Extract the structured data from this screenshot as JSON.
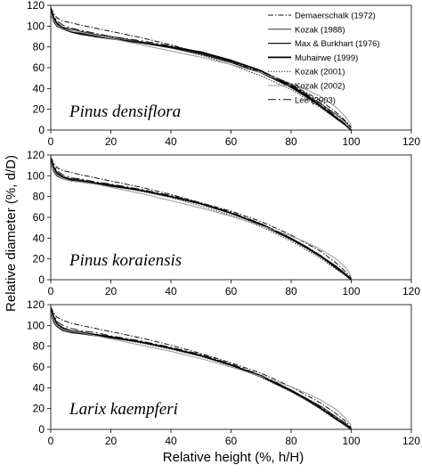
{
  "chart_data": [
    {
      "type": "line",
      "annotation": "Pinus densiflora",
      "xlim": [
        0,
        120
      ],
      "ylim": [
        0,
        120
      ],
      "xticks": [
        "0",
        "20",
        "40",
        "60",
        "80",
        "100",
        "120"
      ],
      "yticks": [
        "0",
        "20",
        "40",
        "60",
        "80",
        "100",
        "120"
      ],
      "grid": false,
      "legend": "top-right",
      "series": [
        {
          "name": "Demaerschalk (1972)",
          "style": "dash-dot",
          "x": [
            0,
            1,
            2,
            4,
            7,
            10,
            15,
            20,
            30,
            40,
            50,
            60,
            70,
            80,
            85,
            90,
            95,
            98,
            100
          ],
          "y": [
            118,
            112,
            108,
            105,
            103,
            101,
            98,
            95,
            89,
            82,
            74,
            66,
            56,
            44,
            36,
            28,
            17,
            9,
            3
          ]
        },
        {
          "name": "Kozak (1988)",
          "style": "solid-thin",
          "x": [
            0,
            1,
            2,
            4,
            7,
            10,
            15,
            20,
            30,
            40,
            50,
            60,
            70,
            80,
            85,
            90,
            95,
            98,
            100
          ],
          "y": [
            114,
            106,
            102,
            99,
            97,
            95,
            92,
            90,
            85,
            80,
            74,
            66,
            57,
            43,
            34,
            25,
            15,
            8,
            2
          ]
        },
        {
          "name": "Max & Burkhart (1976)",
          "style": "solid",
          "x": [
            0,
            1,
            2,
            4,
            7,
            10,
            15,
            20,
            30,
            40,
            50,
            60,
            70,
            80,
            85,
            90,
            95,
            98,
            100
          ],
          "y": [
            112,
            104,
            100,
            97,
            94,
            92,
            90,
            88,
            84,
            79,
            73,
            65,
            55,
            41,
            32,
            22,
            11,
            5,
            0
          ]
        },
        {
          "name": "Muhairwe (1999)",
          "style": "solid-bold",
          "x": [
            0,
            1,
            2,
            4,
            7,
            10,
            15,
            20,
            30,
            40,
            50,
            60,
            70,
            80,
            85,
            90,
            95,
            98,
            100
          ],
          "y": [
            116,
            108,
            103,
            98,
            95,
            93,
            90,
            88,
            84,
            80,
            75,
            67,
            57,
            42,
            33,
            23,
            12,
            5,
            0
          ]
        },
        {
          "name": "Kozak (2001)",
          "style": "dotted",
          "x": [
            0,
            1,
            2,
            4,
            7,
            10,
            15,
            20,
            30,
            40,
            50,
            60,
            70,
            80,
            85,
            90,
            95,
            98,
            100
          ],
          "y": [
            115,
            107,
            102,
            98,
            95,
            93,
            91,
            89,
            84,
            79,
            72,
            63,
            52,
            39,
            30,
            21,
            11,
            5,
            0
          ]
        },
        {
          "name": "Kozak (2002)",
          "style": "solid-gray",
          "x": [
            0,
            1,
            2,
            4,
            7,
            10,
            15,
            20,
            30,
            40,
            50,
            60,
            70,
            80,
            85,
            90,
            95,
            98,
            100
          ],
          "y": [
            112,
            105,
            101,
            97,
            95,
            94,
            91,
            88,
            82,
            76,
            70,
            63,
            55,
            45,
            39,
            32,
            22,
            13,
            5
          ]
        },
        {
          "name": "Lee (2003)",
          "style": "long-dash-dot",
          "x": [
            0,
            1,
            2,
            4,
            7,
            10,
            15,
            20,
            30,
            40,
            50,
            60,
            70,
            80,
            85,
            90,
            95,
            98,
            100
          ],
          "y": [
            117,
            110,
            105,
            101,
            98,
            96,
            93,
            90,
            86,
            81,
            75,
            67,
            57,
            44,
            35,
            25,
            13,
            6,
            0
          ]
        }
      ]
    },
    {
      "type": "line",
      "annotation": "Pinus koraiensis",
      "xlim": [
        0,
        120
      ],
      "ylim": [
        0,
        120
      ],
      "xticks": [
        "0",
        "20",
        "40",
        "60",
        "80",
        "100",
        "120"
      ],
      "yticks": [
        "0",
        "20",
        "40",
        "60",
        "80",
        "100",
        "120"
      ],
      "grid": false,
      "series": [
        {
          "name": "Demaerschalk (1972)",
          "style": "dash-dot",
          "x": [
            0,
            1,
            2,
            4,
            7,
            10,
            15,
            20,
            30,
            40,
            50,
            60,
            70,
            80,
            85,
            90,
            95,
            98,
            100
          ],
          "y": [
            118,
            112,
            108,
            105,
            103,
            101,
            98,
            95,
            89,
            82,
            74,
            66,
            56,
            43,
            35,
            27,
            16,
            8,
            2
          ]
        },
        {
          "name": "Kozak (1988)",
          "style": "solid-thin",
          "x": [
            0,
            1,
            2,
            4,
            7,
            10,
            15,
            20,
            30,
            40,
            50,
            60,
            70,
            80,
            85,
            90,
            95,
            98,
            100
          ],
          "y": [
            114,
            106,
            102,
            99,
            97,
            96,
            93,
            91,
            86,
            80,
            73,
            64,
            54,
            40,
            32,
            23,
            13,
            6,
            1
          ]
        },
        {
          "name": "Max & Burkhart (1976)",
          "style": "solid",
          "x": [
            0,
            1,
            2,
            4,
            7,
            10,
            15,
            20,
            30,
            40,
            50,
            60,
            70,
            80,
            85,
            90,
            95,
            98,
            100
          ],
          "y": [
            112,
            104,
            100,
            97,
            95,
            94,
            92,
            90,
            86,
            80,
            73,
            64,
            53,
            39,
            31,
            22,
            11,
            5,
            0
          ]
        },
        {
          "name": "Muhairwe (1999)",
          "style": "solid-bold",
          "x": [
            0,
            1,
            2,
            4,
            7,
            10,
            15,
            20,
            30,
            40,
            50,
            60,
            70,
            80,
            85,
            90,
            95,
            98,
            100
          ],
          "y": [
            116,
            108,
            103,
            99,
            96,
            95,
            93,
            91,
            86,
            80,
            73,
            64,
            53,
            39,
            31,
            22,
            12,
            5,
            0
          ]
        },
        {
          "name": "Kozak (2001)",
          "style": "dotted",
          "x": [
            0,
            1,
            2,
            4,
            7,
            10,
            15,
            20,
            30,
            40,
            50,
            60,
            70,
            80,
            85,
            90,
            95,
            98,
            100
          ],
          "y": [
            115,
            107,
            102,
            98,
            96,
            95,
            92,
            90,
            85,
            79,
            71,
            62,
            51,
            37,
            29,
            20,
            10,
            4,
            0
          ]
        },
        {
          "name": "Kozak (2002)",
          "style": "solid-gray",
          "x": [
            0,
            1,
            2,
            4,
            7,
            10,
            15,
            20,
            30,
            40,
            50,
            60,
            70,
            80,
            85,
            90,
            95,
            98,
            100
          ],
          "y": [
            112,
            105,
            101,
            97,
            95,
            94,
            92,
            89,
            83,
            76,
            69,
            61,
            52,
            42,
            36,
            29,
            20,
            12,
            4
          ]
        },
        {
          "name": "Lee (2003)",
          "style": "long-dash-dot",
          "x": [
            0,
            1,
            2,
            4,
            7,
            10,
            15,
            20,
            30,
            40,
            50,
            60,
            70,
            80,
            85,
            90,
            95,
            98,
            100
          ],
          "y": [
            117,
            110,
            105,
            101,
            98,
            97,
            94,
            92,
            87,
            81,
            74,
            65,
            54,
            40,
            32,
            23,
            12,
            5,
            0
          ]
        }
      ]
    },
    {
      "type": "line",
      "annotation": "Larix kaempferi",
      "xlim": [
        0,
        120
      ],
      "ylim": [
        0,
        120
      ],
      "xticks": [
        "0",
        "20",
        "40",
        "60",
        "80",
        "100",
        "120"
      ],
      "yticks": [
        "0",
        "20",
        "40",
        "60",
        "80",
        "100",
        "120"
      ],
      "grid": false,
      "series": [
        {
          "name": "Demaerschalk (1972)",
          "style": "dash-dot",
          "x": [
            0,
            1,
            2,
            4,
            7,
            10,
            15,
            20,
            30,
            40,
            50,
            60,
            70,
            80,
            85,
            90,
            95,
            98,
            100
          ],
          "y": [
            118,
            112,
            108,
            105,
            102,
            100,
            97,
            94,
            88,
            81,
            73,
            64,
            54,
            41,
            33,
            25,
            15,
            8,
            2
          ]
        },
        {
          "name": "Kozak (1988)",
          "style": "solid-thin",
          "x": [
            0,
            1,
            2,
            4,
            7,
            10,
            15,
            20,
            30,
            40,
            50,
            60,
            70,
            80,
            85,
            90,
            95,
            98,
            100
          ],
          "y": [
            114,
            106,
            102,
            98,
            95,
            94,
            91,
            89,
            84,
            78,
            71,
            62,
            52,
            38,
            30,
            22,
            12,
            6,
            1
          ]
        },
        {
          "name": "Max & Burkhart (1976)",
          "style": "solid",
          "x": [
            0,
            1,
            2,
            4,
            7,
            10,
            15,
            20,
            30,
            40,
            50,
            60,
            70,
            80,
            85,
            90,
            95,
            98,
            100
          ],
          "y": [
            112,
            103,
            99,
            95,
            93,
            92,
            90,
            88,
            84,
            78,
            71,
            62,
            51,
            37,
            29,
            20,
            10,
            4,
            0
          ]
        },
        {
          "name": "Muhairwe (1999)",
          "style": "solid-bold",
          "x": [
            0,
            1,
            2,
            4,
            7,
            10,
            15,
            20,
            30,
            40,
            50,
            60,
            70,
            80,
            85,
            90,
            95,
            98,
            100
          ],
          "y": [
            116,
            108,
            102,
            97,
            94,
            93,
            91,
            89,
            84,
            78,
            71,
            62,
            51,
            37,
            29,
            20,
            10,
            4,
            0
          ]
        },
        {
          "name": "Kozak (2001)",
          "style": "dotted",
          "x": [
            0,
            1,
            2,
            4,
            7,
            10,
            15,
            20,
            30,
            40,
            50,
            60,
            70,
            80,
            85,
            90,
            95,
            98,
            100
          ],
          "y": [
            115,
            107,
            101,
            97,
            94,
            93,
            90,
            88,
            83,
            77,
            70,
            61,
            50,
            36,
            28,
            19,
            9,
            4,
            0
          ]
        },
        {
          "name": "Kozak (2002)",
          "style": "solid-gray",
          "x": [
            0,
            1,
            2,
            4,
            7,
            10,
            15,
            20,
            30,
            40,
            50,
            60,
            70,
            80,
            85,
            90,
            95,
            98,
            100
          ],
          "y": [
            112,
            105,
            100,
            96,
            94,
            93,
            90,
            87,
            81,
            75,
            68,
            60,
            51,
            41,
            35,
            28,
            19,
            11,
            4
          ]
        },
        {
          "name": "Lee (2003)",
          "style": "long-dash-dot",
          "x": [
            0,
            1,
            2,
            4,
            7,
            10,
            15,
            20,
            30,
            40,
            50,
            60,
            70,
            80,
            85,
            90,
            95,
            98,
            100
          ],
          "y": [
            117,
            110,
            104,
            100,
            97,
            95,
            93,
            90,
            85,
            79,
            72,
            63,
            52,
            38,
            30,
            21,
            11,
            5,
            0
          ]
        }
      ]
    }
  ],
  "axes": {
    "xlabel": "Relative height (%, h/H)",
    "ylabel": "Relative diameter (%, d/D)"
  }
}
